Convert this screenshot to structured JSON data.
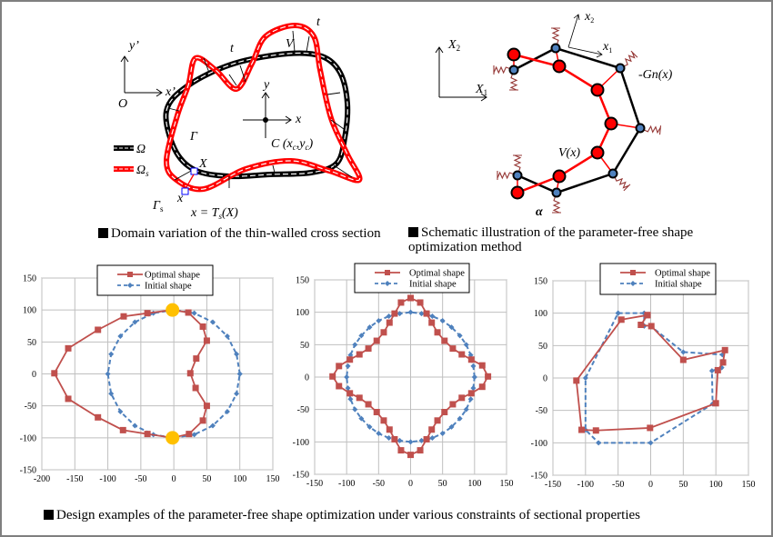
{
  "captions": {
    "domain_variation": "Domain variation of the thin-walled cross section",
    "schematic_line1": "Schematic illustration of the parameter-free shape",
    "schematic_line2": "optimization method",
    "design_examples": "Design examples of the parameter-free shape optimization under various constraints of sectional properties"
  },
  "diagram_left": {
    "labels": {
      "y_prime": "y’",
      "x_prime": "x’",
      "origin": "O",
      "t1": "t",
      "t2": "t",
      "V": "V",
      "y": "y",
      "x": "x",
      "centroid": "C (x",
      "centroid_c1": "c",
      "centroid_mid": ",y",
      "centroid_c2": "c",
      "centroid_end": ")",
      "gamma": "Γ",
      "X": "X",
      "omega": "Ω",
      "omega_s": "Ω",
      "omega_s_sub": "s",
      "gamma_s": "Γ",
      "gamma_s_sub": "s",
      "x_point": "x",
      "mapping": "x = T",
      "mapping_sub": "s",
      "mapping_end": "(X)"
    },
    "colors": {
      "original": "#000000",
      "varied": "#ff0000",
      "marker": "#0000ff"
    }
  },
  "diagram_right": {
    "labels": {
      "X2": "X",
      "X2_sub": "2",
      "X1": "X",
      "X1_sub": "1",
      "x2": "x",
      "x2_sub": "2",
      "x1": "x",
      "x1_sub": "1",
      "gradient": "-Gn(x)",
      "velocity": "V(x)",
      "alpha": "α"
    },
    "colors": {
      "node_initial": "#4f81bd",
      "node_updated": "#ff0000",
      "spring": "#953735"
    }
  },
  "chart_data": [
    {
      "type": "line",
      "xlim": [
        -200,
        150
      ],
      "ylim": [
        -150,
        150
      ],
      "xticks": [
        -200,
        -150,
        -100,
        -50,
        0,
        50,
        100,
        150
      ],
      "yticks": [
        -150,
        -100,
        -50,
        0,
        50,
        100,
        150
      ],
      "grid": true,
      "legend_placement": "top-center",
      "series": [
        {
          "name": "Optimal shape",
          "color": "#c0504d",
          "style": "solid",
          "marker": "square",
          "points": [
            [
              -2,
              100
            ],
            [
              22,
              96
            ],
            [
              44,
              74
            ],
            [
              50,
              52
            ],
            [
              34,
              24
            ],
            [
              25,
              1
            ],
            [
              33,
              -22
            ],
            [
              50,
              -50
            ],
            [
              44,
              -73
            ],
            [
              23,
              -94
            ],
            [
              -2,
              -100
            ],
            [
              -40,
              -94
            ],
            [
              -77,
              -88
            ],
            [
              -115,
              -68
            ],
            [
              -160,
              -39
            ],
            [
              -181,
              1
            ],
            [
              -160,
              40
            ],
            [
              -115,
              69
            ],
            [
              -76,
              90
            ],
            [
              -40,
              95
            ],
            [
              -2,
              100
            ]
          ]
        },
        {
          "name": "Initial shape",
          "color": "#4f81bd",
          "style": "dashed",
          "marker": "diamond",
          "points": [
            [
              100,
              0
            ],
            [
              95,
              31
            ],
            [
              81,
              59
            ],
            [
              59,
              81
            ],
            [
              31,
              95
            ],
            [
              0,
              100
            ],
            [
              -31,
              95
            ],
            [
              -59,
              81
            ],
            [
              -81,
              59
            ],
            [
              -95,
              31
            ],
            [
              -100,
              0
            ],
            [
              -95,
              -31
            ],
            [
              -81,
              -59
            ],
            [
              -59,
              -81
            ],
            [
              -31,
              -95
            ],
            [
              0,
              -100
            ],
            [
              31,
              -95
            ],
            [
              59,
              -81
            ],
            [
              81,
              -59
            ],
            [
              95,
              -31
            ],
            [
              100,
              0
            ]
          ]
        }
      ],
      "highlight_points": {
        "color": "#ffc000",
        "points": [
          [
            -2,
            100
          ],
          [
            -2,
            -100
          ]
        ]
      }
    },
    {
      "type": "line",
      "xlim": [
        -150,
        150
      ],
      "ylim": [
        -150,
        150
      ],
      "xticks": [
        -150,
        -100,
        -50,
        0,
        50,
        100,
        150
      ],
      "yticks": [
        -150,
        -100,
        -50,
        0,
        50,
        100,
        150
      ],
      "grid": true,
      "legend_placement": "top-center",
      "series": [
        {
          "name": "Optimal shape",
          "color": "#c0504d",
          "style": "solid",
          "marker": "square",
          "points": [
            [
              0,
              122
            ],
            [
              15,
              115
            ],
            [
              25,
              98
            ],
            [
              33,
              84
            ],
            [
              42,
              69
            ],
            [
              53,
              56
            ],
            [
              66,
              44
            ],
            [
              80,
              35
            ],
            [
              95,
              27
            ],
            [
              112,
              18
            ],
            [
              121,
              1
            ],
            [
              112,
              -15
            ],
            [
              95,
              -25
            ],
            [
              80,
              -32
            ],
            [
              66,
              -42
            ],
            [
              53,
              -54
            ],
            [
              42,
              -67
            ],
            [
              33,
              -81
            ],
            [
              25,
              -96
            ],
            [
              15,
              -113
            ],
            [
              0,
              -120
            ],
            [
              -15,
              -113
            ],
            [
              -25,
              -96
            ],
            [
              -33,
              -81
            ],
            [
              -42,
              -67
            ],
            [
              -53,
              -54
            ],
            [
              -66,
              -42
            ],
            [
              -80,
              -32
            ],
            [
              -95,
              -25
            ],
            [
              -112,
              -14
            ],
            [
              -122,
              1
            ],
            [
              -112,
              17
            ],
            [
              -95,
              27
            ],
            [
              -80,
              35
            ],
            [
              -66,
              44
            ],
            [
              -53,
              56
            ],
            [
              -42,
              69
            ],
            [
              -33,
              84
            ],
            [
              -25,
              98
            ],
            [
              -15,
              115
            ],
            [
              0,
              122
            ]
          ]
        },
        {
          "name": "Initial shape",
          "color": "#4f81bd",
          "style": "dashed",
          "marker": "diamond",
          "points": [
            [
              100,
              0
            ],
            [
              98,
              17
            ],
            [
              94,
              34
            ],
            [
              87,
              50
            ],
            [
              77,
              64
            ],
            [
              64,
              77
            ],
            [
              50,
              87
            ],
            [
              34,
              94
            ],
            [
              17,
              98
            ],
            [
              0,
              100
            ],
            [
              -17,
              98
            ],
            [
              -34,
              94
            ],
            [
              -50,
              87
            ],
            [
              -64,
              77
            ],
            [
              -77,
              64
            ],
            [
              -87,
              50
            ],
            [
              -94,
              34
            ],
            [
              -98,
              17
            ],
            [
              -100,
              0
            ],
            [
              -98,
              -17
            ],
            [
              -94,
              -34
            ],
            [
              -87,
              -50
            ],
            [
              -77,
              -64
            ],
            [
              -64,
              -77
            ],
            [
              -50,
              -87
            ],
            [
              -34,
              -94
            ],
            [
              -17,
              -98
            ],
            [
              0,
              -100
            ],
            [
              17,
              -98
            ],
            [
              34,
              -94
            ],
            [
              50,
              -87
            ],
            [
              64,
              -77
            ],
            [
              77,
              -64
            ],
            [
              87,
              -50
            ],
            [
              94,
              -34
            ],
            [
              98,
              -17
            ],
            [
              100,
              0
            ]
          ]
        }
      ]
    },
    {
      "type": "line",
      "xlim": [
        -150,
        150
      ],
      "ylim": [
        -150,
        150
      ],
      "xticks": [
        -150,
        -100,
        -50,
        0,
        50,
        100,
        150
      ],
      "yticks": [
        -150,
        -100,
        -50,
        0,
        50,
        100,
        150
      ],
      "grid": true,
      "legend_placement": "top-center",
      "series": [
        {
          "name": "Optimal shape",
          "color": "#c0504d",
          "style": "solid",
          "marker": "square",
          "points": [
            [
              -5,
              97
            ],
            [
              -45,
              90
            ],
            [
              -114,
              -4
            ],
            [
              -106,
              -80
            ],
            [
              -84,
              -81
            ],
            [
              -1,
              -77
            ],
            [
              100,
              -39
            ],
            [
              103,
              12
            ],
            [
              111,
              24
            ],
            [
              114,
              43
            ],
            [
              50,
              28
            ],
            [
              1,
              80
            ],
            [
              -15,
              82
            ],
            [
              -5,
              97
            ]
          ]
        },
        {
          "name": "Initial shape",
          "color": "#4f81bd",
          "style": "dashed",
          "marker": "diamond",
          "points": [
            [
              -50,
              100
            ],
            [
              -10,
              100
            ],
            [
              -10,
              80
            ],
            [
              0,
              80
            ],
            [
              50,
              40
            ],
            [
              110,
              36
            ],
            [
              109,
              16
            ],
            [
              94,
              11
            ],
            [
              95,
              -40
            ],
            [
              0,
              -100
            ],
            [
              -80,
              -100
            ],
            [
              -100,
              -80
            ],
            [
              -100,
              0
            ],
            [
              -50,
              100
            ]
          ]
        }
      ]
    }
  ]
}
